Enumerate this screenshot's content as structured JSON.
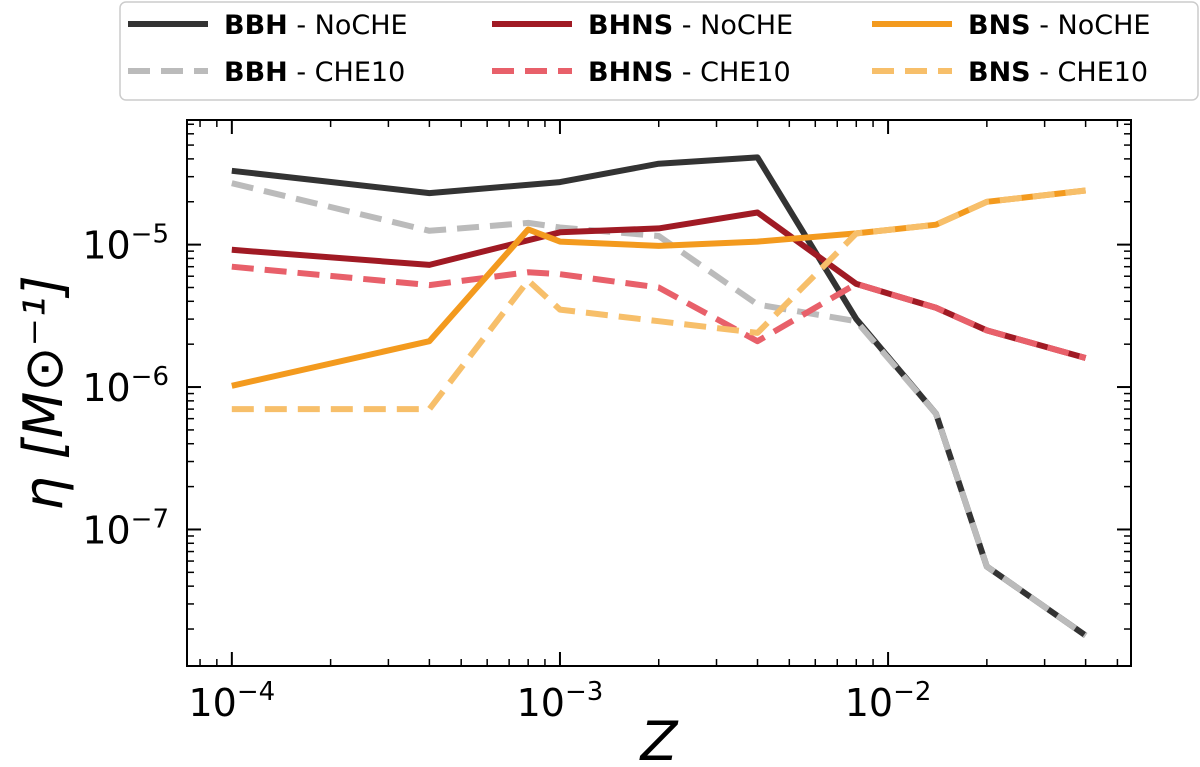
{
  "chart_data": {
    "type": "line",
    "xlabel": "Z",
    "ylabel": "η [M⊙⁻¹]",
    "xscale": "log",
    "yscale": "log",
    "xlim": [
      7.3e-05,
      0.055
    ],
    "ylim": [
      1.1e-08,
      7.5e-05
    ],
    "xticks": [
      {
        "value": 0.0001,
        "base": "10",
        "exp": "−4"
      },
      {
        "value": 0.001,
        "base": "10",
        "exp": "−3"
      },
      {
        "value": 0.01,
        "base": "10",
        "exp": "−2"
      }
    ],
    "yticks": [
      {
        "value": 1e-07,
        "base": "10",
        "exp": "−7"
      },
      {
        "value": 1e-06,
        "base": "10",
        "exp": "−6"
      },
      {
        "value": 1e-05,
        "base": "10",
        "exp": "−5"
      }
    ],
    "grid": false,
    "legend_position": "top, outside plot",
    "series": [
      {
        "name_bold": "BBH",
        "name_rest": " - NoCHE",
        "color": "#333333",
        "dash": "solid",
        "x": [
          0.0001,
          0.0004,
          0.001,
          0.002,
          0.004,
          0.008,
          0.014,
          0.02,
          0.04
        ],
        "y": [
          3.3e-05,
          2.3e-05,
          2.75e-05,
          3.7e-05,
          4.1e-05,
          3e-06,
          6.5e-07,
          5.5e-08,
          1.8e-08
        ]
      },
      {
        "name_bold": "BBH",
        "name_rest": " - CHE10",
        "color": "#bbbbbb",
        "dash": "dashed",
        "x": [
          0.0001,
          0.0004,
          0.0008,
          0.001,
          0.002,
          0.004,
          0.008,
          0.014,
          0.02,
          0.04
        ],
        "y": [
          2.7e-05,
          1.25e-05,
          1.42e-05,
          1.32e-05,
          1.15e-05,
          3.8e-06,
          2.9e-06,
          6.5e-07,
          5.5e-08,
          1.8e-08
        ]
      },
      {
        "name_bold": "BHNS",
        "name_rest": " - NoCHE",
        "color": "#a01a24",
        "dash": "solid",
        "x": [
          0.0001,
          0.0004,
          0.001,
          0.002,
          0.004,
          0.008,
          0.014,
          0.02,
          0.04
        ],
        "y": [
          9.2e-06,
          7.2e-06,
          1.22e-05,
          1.3e-05,
          1.68e-05,
          5.3e-06,
          3.6e-06,
          2.5e-06,
          1.6e-06
        ]
      },
      {
        "name_bold": "BHNS",
        "name_rest": " - CHE10",
        "color": "#e8606a",
        "dash": "dashed",
        "x": [
          0.0001,
          0.0004,
          0.0008,
          0.001,
          0.002,
          0.004,
          0.008,
          0.014,
          0.02,
          0.04
        ],
        "y": [
          7e-06,
          5.2e-06,
          6.4e-06,
          6.2e-06,
          5e-06,
          2.1e-06,
          5.3e-06,
          3.6e-06,
          2.5e-06,
          1.6e-06
        ]
      },
      {
        "name_bold": "BNS",
        "name_rest": " - NoCHE",
        "color": "#f39a1e",
        "dash": "solid",
        "x": [
          0.0001,
          0.0004,
          0.0008,
          0.001,
          0.002,
          0.004,
          0.008,
          0.014,
          0.02,
          0.04
        ],
        "y": [
          1.02e-06,
          2.1e-06,
          1.28e-05,
          1.05e-05,
          9.8e-06,
          1.05e-05,
          1.2e-05,
          1.38e-05,
          2e-05,
          2.4e-05
        ]
      },
      {
        "name_bold": "BNS",
        "name_rest": " - CHE10",
        "color": "#f7bf6a",
        "dash": "dashed",
        "x": [
          0.0001,
          0.0004,
          0.0008,
          0.001,
          0.002,
          0.004,
          0.008,
          0.014,
          0.02,
          0.04
        ],
        "y": [
          7e-07,
          7e-07,
          5.6e-06,
          3.5e-06,
          2.9e-06,
          2.4e-06,
          1.2e-05,
          1.38e-05,
          2e-05,
          2.4e-05
        ]
      }
    ]
  }
}
